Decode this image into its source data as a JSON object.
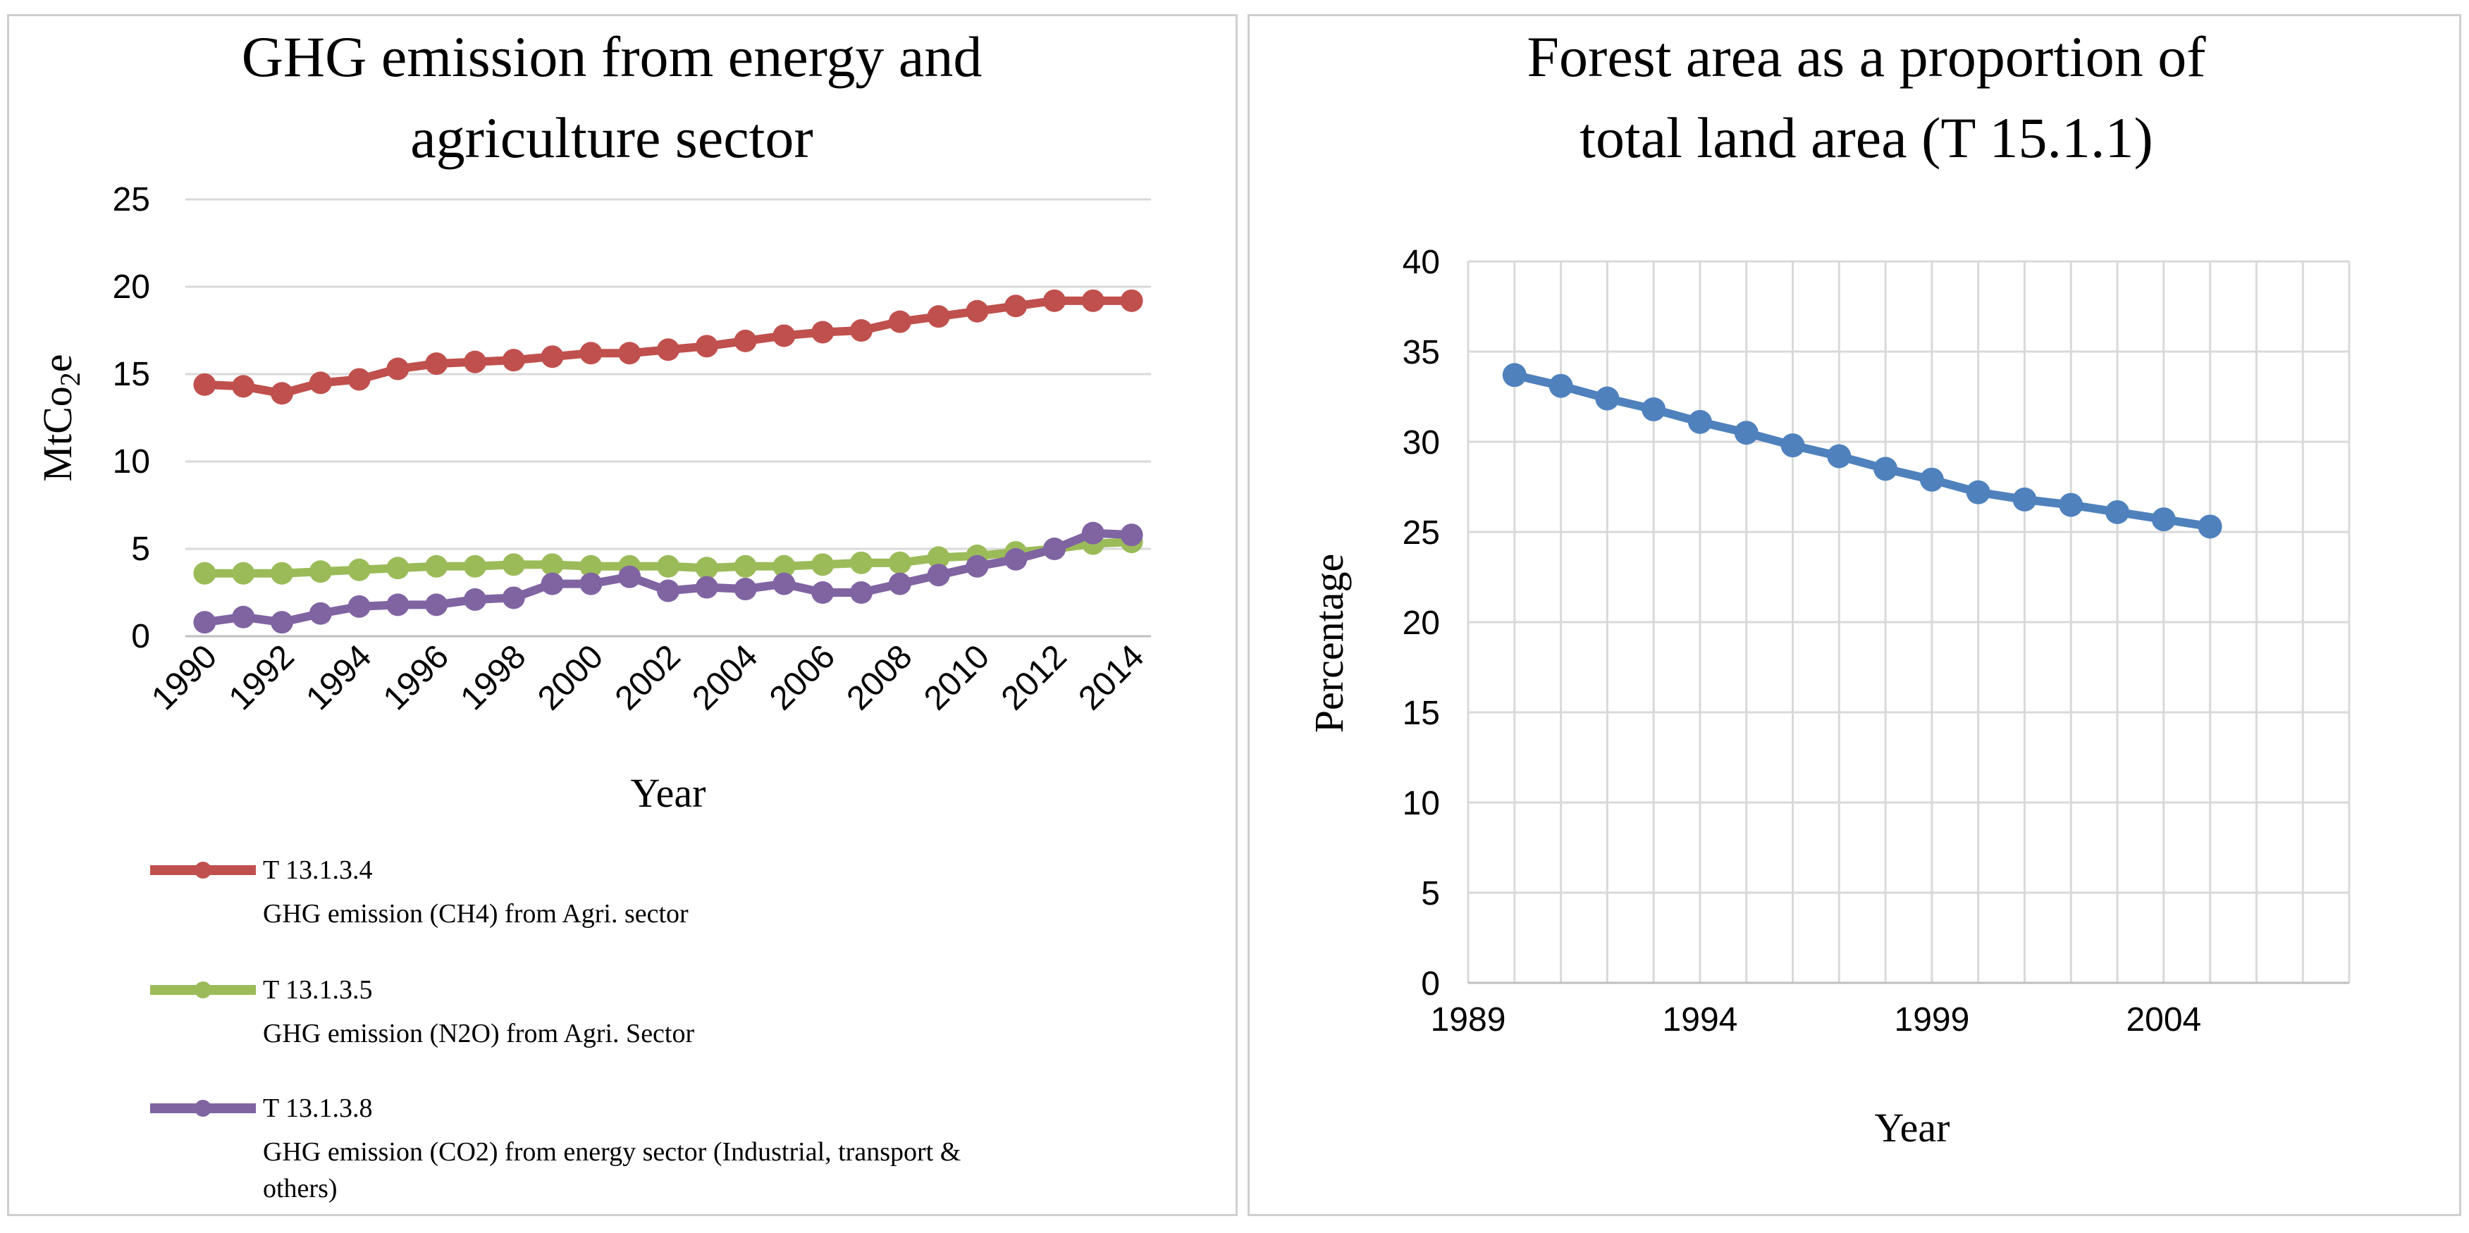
{
  "chart_data": [
    {
      "type": "line",
      "title_lines": [
        "GHG emission from energy and",
        "agriculture sector"
      ],
      "xlabel": "Year",
      "ylabel": "MtCo",
      "ylabel_sub": "2",
      "ylabel_suffix": "e",
      "ylim": [
        0,
        25
      ],
      "yticks": [
        "0",
        "5",
        "10",
        "15",
        "20",
        "25"
      ],
      "x": [
        1990,
        1991,
        1992,
        1993,
        1994,
        1995,
        1996,
        1997,
        1998,
        1999,
        2000,
        2001,
        2002,
        2003,
        2004,
        2005,
        2006,
        2007,
        2008,
        2009,
        2010,
        2011,
        2012,
        2013,
        2014
      ],
      "xtick_labels": [
        "1990",
        "1992",
        "1994",
        "1996",
        "1998",
        "2000",
        "2002",
        "2004",
        "2006",
        "2008",
        "2010",
        "2012",
        "2014"
      ],
      "grid": true,
      "legend_position": "bottom",
      "series": [
        {
          "code": "T 13.1.3.4",
          "name": "GHG emission (CH4) from Agri. sector",
          "color": "#c0504d",
          "values": [
            14.4,
            14.3,
            13.9,
            14.5,
            14.7,
            15.3,
            15.6,
            15.7,
            15.8,
            16.0,
            16.2,
            16.2,
            16.4,
            16.6,
            16.9,
            17.2,
            17.4,
            17.5,
            18.0,
            18.3,
            18.6,
            18.9,
            19.2,
            19.2,
            19.2
          ]
        },
        {
          "code": "T 13.1.3.5",
          "name": "GHG emission (N2O) from Agri. Sector",
          "color": "#9bbb59",
          "values": [
            3.6,
            3.6,
            3.6,
            3.7,
            3.8,
            3.9,
            4.0,
            4.0,
            4.1,
            4.1,
            4.0,
            4.0,
            4.0,
            3.9,
            4.0,
            4.0,
            4.1,
            4.2,
            4.2,
            4.5,
            4.6,
            4.8,
            5.0,
            5.3,
            5.4
          ]
        },
        {
          "code": "T 13.1.3.8",
          "name": "GHG emission (CO2) from energy sector (Industrial, transport &",
          "name_line2": "others)",
          "color": "#8064a2",
          "values": [
            0.8,
            1.1,
            0.8,
            1.3,
            1.7,
            1.8,
            1.8,
            2.1,
            2.2,
            3.0,
            3.0,
            3.4,
            2.6,
            2.8,
            2.7,
            3.0,
            2.5,
            2.5,
            3.0,
            3.5,
            4.0,
            4.4,
            5.0,
            5.9,
            5.8
          ]
        }
      ]
    },
    {
      "type": "line",
      "title_lines": [
        "Forest area as a proportion of",
        "total land area (T 15.1.1)"
      ],
      "xlabel": "Year",
      "ylabel": "Percentage",
      "ylim": [
        0,
        40
      ],
      "yticks": [
        "0",
        "5",
        "10",
        "15",
        "20",
        "25",
        "30",
        "35",
        "40"
      ],
      "xlim": [
        1989,
        2008
      ],
      "xtick_labels": [
        "1989",
        "1994",
        "1999",
        "2004"
      ],
      "grid": true,
      "series": [
        {
          "name": "Forest area",
          "color": "#4f81bd",
          "x": [
            1990,
            1991,
            1992,
            1993,
            1994,
            1995,
            1996,
            1997,
            1998,
            1999,
            2000,
            2001,
            2002,
            2003,
            2004,
            2005
          ],
          "values": [
            33.7,
            33.1,
            32.4,
            31.8,
            31.1,
            30.5,
            29.8,
            29.2,
            28.5,
            27.9,
            27.2,
            26.8,
            26.5,
            26.1,
            25.7,
            25.3
          ]
        }
      ]
    }
  ]
}
